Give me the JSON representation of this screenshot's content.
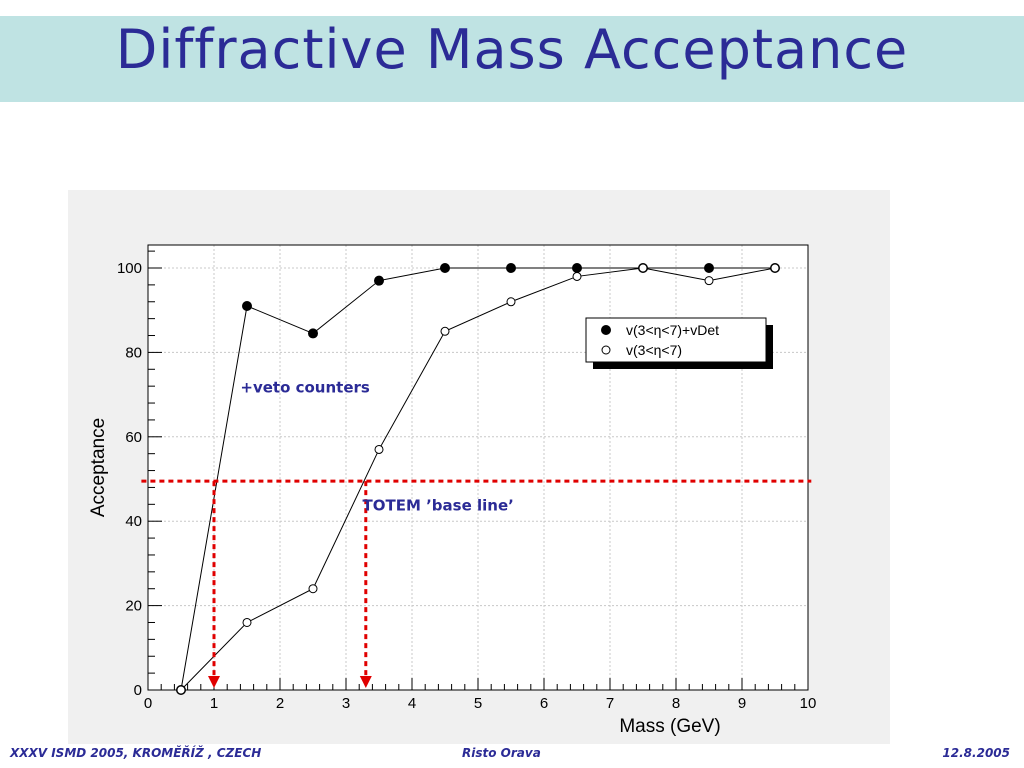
{
  "slide": {
    "title": "Diffractive Mass Acceptance",
    "footer_left": "XXXV ISMD 2005, KROMĚŘÍŽ , CZECH",
    "footer_center": "Risto Orava",
    "footer_right": "12.8.2005"
  },
  "chart_data": {
    "type": "line",
    "title": "",
    "xlabel": "Mass  (GeV)",
    "ylabel": "Acceptance",
    "xlim": [
      0,
      10
    ],
    "ylim": [
      0,
      105
    ],
    "xticks": [
      "0",
      "1",
      "2",
      "3",
      "4",
      "5",
      "6",
      "7",
      "8",
      "9",
      "10"
    ],
    "yticks": [
      "0",
      "20",
      "40",
      "60",
      "80",
      "100"
    ],
    "grid": true,
    "legend_position": "top-right",
    "series": [
      {
        "name": "v(3<η<7)+vDet",
        "marker": "filled-circle",
        "x": [
          0.5,
          1.5,
          2.5,
          3.5,
          4.5,
          5.5,
          6.5,
          7.5,
          8.5,
          9.5
        ],
        "y": [
          0,
          91,
          84.5,
          97,
          100,
          100,
          100,
          100,
          100,
          100
        ]
      },
      {
        "name": "v(3<η<7)",
        "marker": "open-circle",
        "x": [
          0.5,
          1.5,
          2.5,
          3.5,
          4.5,
          5.5,
          6.5,
          7.5,
          8.5,
          9.5
        ],
        "y": [
          0,
          16,
          24,
          57,
          85,
          92,
          98,
          100,
          97,
          100
        ]
      }
    ],
    "annotations": {
      "veto_label": "+veto counters",
      "baseline_label": "TOTEM ’base line’",
      "baseline_y": 49.5,
      "arrow_x_values": [
        1.0,
        3.3
      ]
    },
    "colors": {
      "annotation_red": "#e00000",
      "annotation_text": "#2b2b96"
    }
  }
}
